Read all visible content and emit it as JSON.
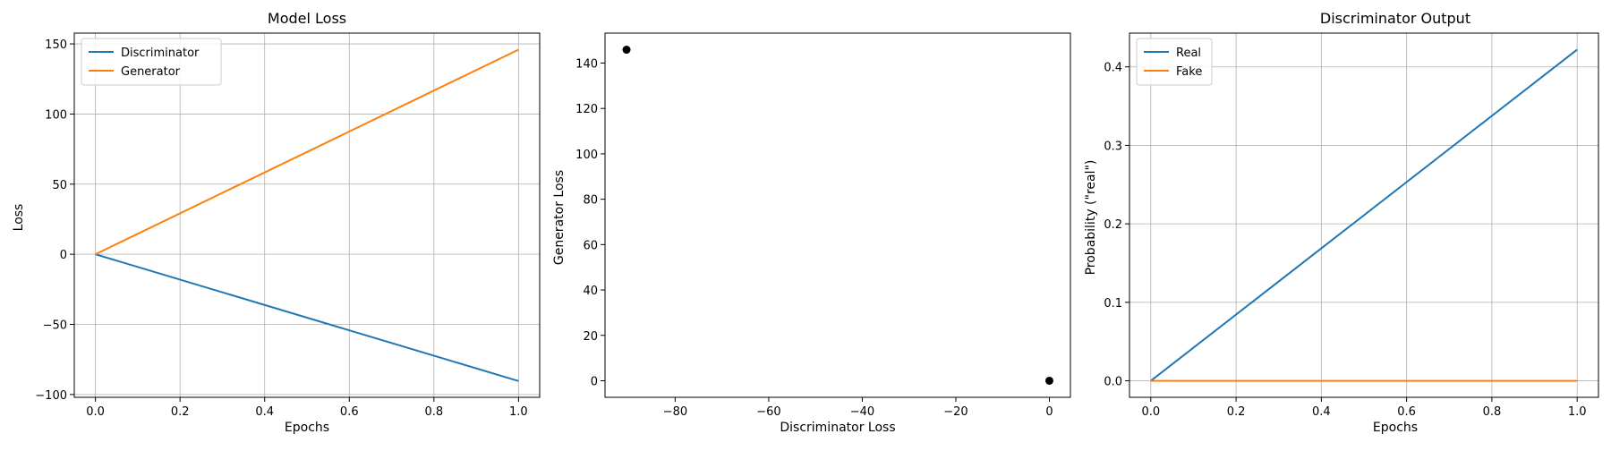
{
  "chart_data": [
    {
      "type": "line",
      "title": "Model Loss",
      "xlabel": "Epochs",
      "ylabel": "Loss",
      "x": [
        0.0,
        1.0
      ],
      "series": [
        {
          "name": "Discriminator",
          "values": [
            0.0,
            -90.4
          ],
          "color": "#1f77b4"
        },
        {
          "name": "Generator",
          "values": [
            0.0,
            145.9
          ],
          "color": "#ff7f0e"
        }
      ],
      "xlim": [
        -0.05,
        1.05
      ],
      "ylim": [
        -102,
        157.7
      ],
      "xticks": [
        0.0,
        0.2,
        0.4,
        0.6,
        0.8,
        1.0
      ],
      "xtick_labels": [
        "0.0",
        "0.2",
        "0.4",
        "0.6",
        "0.8",
        "1.0"
      ],
      "yticks": [
        -100,
        -50,
        0,
        50,
        100,
        150
      ],
      "ytick_labels": [
        "−100",
        "−50",
        "0",
        "50",
        "100",
        "150"
      ],
      "grid": true,
      "legend": "upper-left"
    },
    {
      "type": "scatter",
      "title": "",
      "xlabel": "Discriminator Loss",
      "ylabel": "Generator Loss",
      "points": [
        {
          "x": -90.4,
          "y": 145.9
        },
        {
          "x": 0.0,
          "y": 0.0
        }
      ],
      "color": "#000000",
      "xlim": [
        -95,
        4.5
      ],
      "ylim": [
        -7.3,
        153.2
      ],
      "xticks": [
        -80,
        -60,
        -40,
        -20,
        0
      ],
      "xtick_labels": [
        "−80",
        "−60",
        "−40",
        "−20",
        "0"
      ],
      "yticks": [
        0,
        20,
        40,
        60,
        80,
        100,
        120,
        140
      ],
      "ytick_labels": [
        "0",
        "20",
        "40",
        "60",
        "80",
        "100",
        "120",
        "140"
      ],
      "grid": false
    },
    {
      "type": "line",
      "title": "Discriminator Output",
      "xlabel": "Epochs",
      "ylabel": "Probability (\"real\")",
      "x": [
        0.0,
        1.0
      ],
      "series": [
        {
          "name": "Real",
          "values": [
            0.0,
            0.422
          ],
          "color": "#1f77b4"
        },
        {
          "name": "Fake",
          "values": [
            0.0,
            0.0
          ],
          "color": "#ff7f0e"
        }
      ],
      "xlim": [
        -0.05,
        1.05
      ],
      "ylim": [
        -0.021,
        0.443
      ],
      "xticks": [
        0.0,
        0.2,
        0.4,
        0.6,
        0.8,
        1.0
      ],
      "xtick_labels": [
        "0.0",
        "0.2",
        "0.4",
        "0.6",
        "0.8",
        "1.0"
      ],
      "yticks": [
        0.0,
        0.1,
        0.2,
        0.3,
        0.4
      ],
      "ytick_labels": [
        "0.0",
        "0.1",
        "0.2",
        "0.3",
        "0.4"
      ],
      "grid": true,
      "legend": "upper-left"
    }
  ]
}
